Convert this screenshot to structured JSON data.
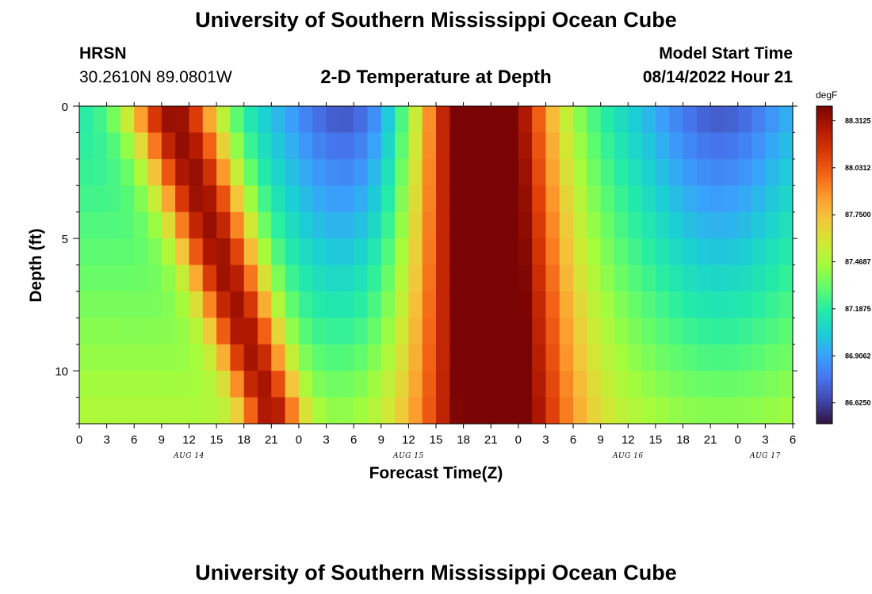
{
  "header": {
    "title": "University of Southern Mississippi Ocean Cube",
    "station": "HRSN",
    "coords": "30.2610N  89.0801W",
    "subtitle": "2-D Temperature at Depth",
    "start_label": "Model Start Time",
    "start_value": "08/14/2022 Hour 21"
  },
  "footer": {
    "title": "University of Southern Mississippi Ocean Cube"
  },
  "chart_data": {
    "type": "heatmap",
    "title": "2-D Temperature at Depth",
    "xlabel": "Forecast Time(Z)",
    "ylabel": "Depth (ft)",
    "x_range_hours": [
      0,
      78
    ],
    "x_ticks": [
      {
        "h": 0,
        "label": "0"
      },
      {
        "h": 3,
        "label": "3"
      },
      {
        "h": 6,
        "label": "6"
      },
      {
        "h": 9,
        "label": "9"
      },
      {
        "h": 12,
        "label": "12"
      },
      {
        "h": 15,
        "label": "15"
      },
      {
        "h": 18,
        "label": "18"
      },
      {
        "h": 21,
        "label": "21"
      },
      {
        "h": 24,
        "label": "0"
      },
      {
        "h": 27,
        "label": "3"
      },
      {
        "h": 30,
        "label": "6"
      },
      {
        "h": 33,
        "label": "9"
      },
      {
        "h": 36,
        "label": "12"
      },
      {
        "h": 39,
        "label": "15"
      },
      {
        "h": 42,
        "label": "18"
      },
      {
        "h": 45,
        "label": "21"
      },
      {
        "h": 48,
        "label": "0"
      },
      {
        "h": 51,
        "label": "3"
      },
      {
        "h": 54,
        "label": "6"
      },
      {
        "h": 57,
        "label": "9"
      },
      {
        "h": 60,
        "label": "12"
      },
      {
        "h": 63,
        "label": "15"
      },
      {
        "h": 66,
        "label": "18"
      },
      {
        "h": 69,
        "label": "21"
      },
      {
        "h": 72,
        "label": "0"
      },
      {
        "h": 75,
        "label": "3"
      },
      {
        "h": 78,
        "label": "6"
      }
    ],
    "date_labels": [
      {
        "h": 12,
        "label": "AUG 14"
      },
      {
        "h": 36,
        "label": "AUG 15"
      },
      {
        "h": 60,
        "label": "AUG 16"
      },
      {
        "h": 75,
        "label": "AUG 17"
      }
    ],
    "y_range_ft": [
      0,
      12
    ],
    "y_ticks": [
      {
        "ft": 0,
        "label": "0"
      },
      {
        "ft": 5,
        "label": "5"
      },
      {
        "ft": 10,
        "label": "10"
      }
    ],
    "colorbar": {
      "unit": "degF",
      "range": [
        86.5,
        88.4
      ],
      "labels": [
        "88.3125",
        "88.0312",
        "87.7500",
        "87.4687",
        "87.1875",
        "86.9062",
        "86.6250"
      ],
      "colors": [
        "#30123b",
        "#4145ab",
        "#4675ed",
        "#39a2fc",
        "#1bcfd4",
        "#24eca6",
        "#61fc6c",
        "#a4fc3b",
        "#d1e834",
        "#f3c63a",
        "#fe9b2d",
        "#f36315",
        "#d93806",
        "#b11901",
        "#7a0403"
      ]
    },
    "time_step_hours": 1.5,
    "depth_step_ft": 1,
    "warm_centers": [
      {
        "hour": 10,
        "amplitude": 1.15,
        "width_surface_h": 3.6,
        "width_bottom_h": 2.2,
        "shift_h_per_ft": 0.95
      },
      {
        "hour": 44,
        "amplitude": 1.55,
        "width_surface_h": 5.5,
        "width_bottom_h": 6.0,
        "shift_h_per_ft": 0.1
      }
    ],
    "cold_centers": [
      {
        "hour": 30,
        "amplitude": 0.5,
        "width_h": 6
      },
      {
        "hour": 70,
        "amplitude": 0.45,
        "width_h": 6
      }
    ]
  }
}
